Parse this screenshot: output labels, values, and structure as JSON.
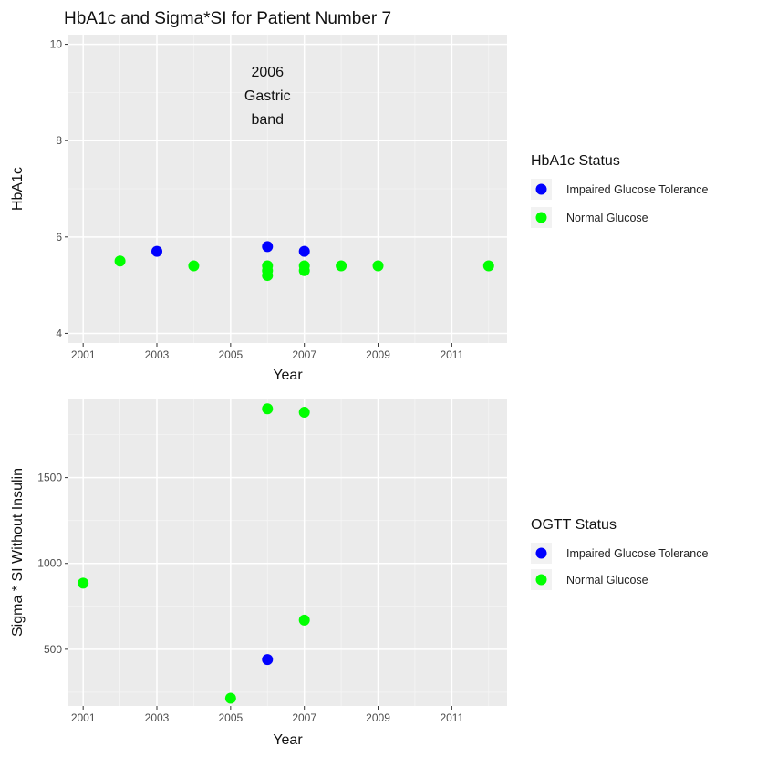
{
  "title": "HbA1c and Sigma*SI for Patient Number 7",
  "colors": {
    "panel_bg": "#ebebeb",
    "grid_major": "#ffffff",
    "impaired": "#0000ff",
    "normal": "#00ff00"
  },
  "chart_data": [
    {
      "type": "scatter",
      "xlabel": "Year",
      "ylabel": "HbA1c",
      "xlim": [
        2000.6,
        2012.5
      ],
      "ylim": [
        3.8,
        10.2
      ],
      "x_ticks": [
        2001,
        2003,
        2005,
        2007,
        2009,
        2011
      ],
      "x_tick_labels": [
        "2001",
        "2003",
        "2005",
        "2007",
        "2009",
        "2011"
      ],
      "y_ticks": [
        4,
        6,
        8,
        10
      ],
      "y_tick_labels": [
        "4",
        "6",
        "8",
        "10"
      ],
      "grid": true,
      "legend": {
        "title": "HbA1c Status",
        "placement": "right",
        "entries": [
          {
            "label": "Impaired Glucose Tolerance",
            "color": "#0000ff"
          },
          {
            "label": "Normal Glucose",
            "color": "#00ff00"
          }
        ]
      },
      "annotation": {
        "lines": [
          "2006",
          "Gastric",
          "band"
        ],
        "x": 2006,
        "y": 8.95
      },
      "series": [
        {
          "name": "Impaired Glucose Tolerance",
          "color": "#0000ff",
          "points": [
            [
              2003,
              5.7
            ],
            [
              2006,
              5.8
            ],
            [
              2007,
              5.7
            ]
          ]
        },
        {
          "name": "Normal Glucose",
          "color": "#00ff00",
          "points": [
            [
              2002,
              5.5
            ],
            [
              2004,
              5.4
            ],
            [
              2006,
              5.4
            ],
            [
              2006,
              5.3
            ],
            [
              2006,
              5.2
            ],
            [
              2007,
              5.4
            ],
            [
              2007,
              5.3
            ],
            [
              2008,
              5.4
            ],
            [
              2009,
              5.4
            ],
            [
              2012,
              5.4
            ]
          ]
        }
      ]
    },
    {
      "type": "scatter",
      "xlabel": "Year",
      "ylabel": "Sigma * SI Without Insulin",
      "xlim": [
        2000.6,
        2012.5
      ],
      "ylim": [
        170,
        1960
      ],
      "x_ticks": [
        2001,
        2003,
        2005,
        2007,
        2009,
        2011
      ],
      "x_tick_labels": [
        "2001",
        "2003",
        "2005",
        "2007",
        "2009",
        "2011"
      ],
      "y_ticks": [
        500,
        1000,
        1500
      ],
      "y_tick_labels": [
        "500",
        "1000",
        "1500"
      ],
      "grid": true,
      "legend": {
        "title": "OGTT Status",
        "placement": "right",
        "entries": [
          {
            "label": "Impaired Glucose Tolerance",
            "color": "#0000ff"
          },
          {
            "label": "Normal Glucose",
            "color": "#00ff00"
          }
        ]
      },
      "series": [
        {
          "name": "Impaired Glucose Tolerance",
          "color": "#0000ff",
          "points": [
            [
              2006,
              440
            ]
          ]
        },
        {
          "name": "Normal Glucose",
          "color": "#00ff00",
          "points": [
            [
              2001,
              885
            ],
            [
              2005,
              215
            ],
            [
              2006,
              1900
            ],
            [
              2007,
              1880
            ],
            [
              2007,
              670
            ]
          ]
        }
      ]
    }
  ]
}
